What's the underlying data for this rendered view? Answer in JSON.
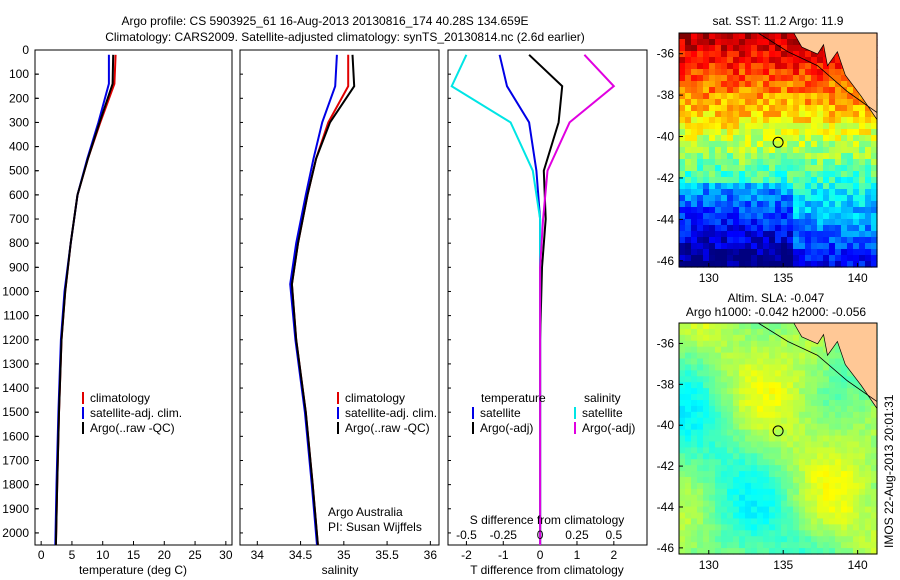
{
  "header": {
    "line1": "Argo profile: CS 5903925_61 16-Aug-2013 20130816_174 40.28S 134.659E",
    "line2": "Climatology: CARS2009. Satellite-adjusted climatology: synTS_20130814.nc (2.6d earlier)"
  },
  "footer_stamp": "IMOS 22-Aug-2013 20:01:31",
  "colors": {
    "climatology": "#e00000",
    "satellite": "#0000e6",
    "argo": "#000000",
    "satellite_s": "#00e5e5",
    "argo_s": "#e000e0",
    "land": "#ffc896"
  },
  "chart_data": [
    {
      "type": "line",
      "xlabel": "temperature (deg C)",
      "xticks": [
        "0",
        "5",
        "10",
        "15",
        "20",
        "25",
        "30"
      ],
      "xlim": [
        -1,
        31
      ],
      "ylim": [
        0,
        2050
      ],
      "yticks": [
        "0",
        "100",
        "200",
        "300",
        "400",
        "500",
        "600",
        "700",
        "800",
        "900",
        "1000",
        "1100",
        "1200",
        "1300",
        "1400",
        "1500",
        "1600",
        "1700",
        "1800",
        "1900",
        "2000"
      ],
      "legend": [
        "climatology",
        "satellite-adj. clim.",
        "Argo(..raw -QC)"
      ],
      "series": [
        {
          "name": "climatology",
          "color": "#e00000",
          "depth": [
            20,
            140,
            300,
            450,
            600,
            800,
            1000,
            1200,
            1500,
            1800,
            2050
          ],
          "values": [
            12.1,
            11.9,
            9.6,
            7.6,
            5.9,
            4.8,
            3.9,
            3.3,
            2.9,
            2.6,
            2.4
          ]
        },
        {
          "name": "satellite-adj. clim.",
          "color": "#0000e6",
          "depth": [
            20,
            140,
            300,
            450,
            600,
            800,
            1000,
            1200,
            1500,
            1800,
            2050
          ],
          "values": [
            11.0,
            11.0,
            9.3,
            7.5,
            5.9,
            4.8,
            3.8,
            3.2,
            2.8,
            2.5,
            2.3
          ]
        },
        {
          "name": "Argo(..raw -QC)",
          "color": "#000000",
          "depth": [
            20,
            140,
            300,
            450,
            600,
            800,
            1000,
            1200,
            1500,
            1800,
            2050
          ],
          "values": [
            11.7,
            11.6,
            9.5,
            7.6,
            5.9,
            4.8,
            3.9,
            3.3,
            2.9,
            2.6,
            2.4
          ]
        }
      ]
    },
    {
      "type": "line",
      "xlabel": "salinity",
      "xticks": [
        "34",
        "34.5",
        "35",
        "35.5",
        "36"
      ],
      "xlim": [
        33.8,
        36.1
      ],
      "ylim": [
        0,
        2050
      ],
      "legend": [
        "climatology",
        "satellite-adj. clim.",
        "Argo(..raw -QC)"
      ],
      "annotation": [
        "Argo Australia",
        "PI: Susan Wijffels"
      ],
      "series": [
        {
          "name": "climatology",
          "color": "#e00000",
          "depth": [
            20,
            150,
            300,
            450,
            600,
            800,
            970,
            1200,
            1500,
            1800,
            2050
          ],
          "values": [
            35.05,
            35.05,
            34.82,
            34.68,
            34.58,
            34.47,
            34.4,
            34.45,
            34.56,
            34.64,
            34.7
          ]
        },
        {
          "name": "satellite-adj. clim.",
          "color": "#0000e6",
          "depth": [
            20,
            150,
            300,
            450,
            600,
            800,
            970,
            1200,
            1500,
            1800,
            2050
          ],
          "values": [
            34.92,
            34.9,
            34.75,
            34.65,
            34.56,
            34.45,
            34.38,
            34.44,
            34.55,
            34.63,
            34.69
          ]
        },
        {
          "name": "Argo(..raw -QC)",
          "color": "#000000",
          "depth": [
            20,
            150,
            300,
            450,
            600,
            800,
            970,
            1200,
            1500,
            1800,
            2050
          ],
          "values": [
            35.1,
            35.12,
            34.84,
            34.68,
            34.58,
            34.47,
            34.4,
            34.45,
            34.56,
            34.64,
            34.7
          ]
        }
      ]
    },
    {
      "type": "line",
      "xlabel": "T difference from climatology",
      "xlabel_top": "S difference from climatology",
      "xticks": [
        "-2",
        "-1",
        "0",
        "1",
        "2"
      ],
      "xticks_top": [
        "-0.5",
        "-0.25",
        "0",
        "0.25",
        "0.5"
      ],
      "xlim": [
        -2.5,
        2.9
      ],
      "ylim": [
        0,
        2050
      ],
      "legend_titles": [
        "temperature",
        "salinity"
      ],
      "legend": [
        "satellite",
        "Argo(-adj)",
        "satellite",
        "Argo(-adj)"
      ],
      "series": [
        {
          "name": "satellite",
          "color": "#0000e6",
          "depth": [
            20,
            150,
            300,
            500,
            700,
            900,
            1200,
            1500,
            2050
          ],
          "values": [
            -1.1,
            -0.9,
            -0.3,
            -0.1,
            0.0,
            0.0,
            0.0,
            0.0,
            0.0
          ]
        },
        {
          "name": "Argo(-adj)",
          "color": "#000000",
          "depth": [
            20,
            150,
            300,
            500,
            700,
            900,
            1200,
            1500,
            2050
          ],
          "values": [
            -0.3,
            0.6,
            0.5,
            0.1,
            0.15,
            0.05,
            0.0,
            0.0,
            0.0
          ]
        },
        {
          "name": "satellite",
          "color": "#00e5e5",
          "depth": [
            20,
            150,
            300,
            500,
            700,
            900,
            1200,
            1500,
            2050
          ],
          "values": [
            -0.5,
            -0.6,
            -0.2,
            -0.05,
            0.0,
            0.0,
            0.0,
            0.0,
            0.0
          ]
        },
        {
          "name": "Argo(-adj)",
          "color": "#e000e0",
          "depth": [
            20,
            150,
            300,
            500,
            700,
            900,
            1200,
            1500,
            2050
          ],
          "values": [
            0.3,
            0.5,
            0.2,
            0.05,
            0.02,
            0.0,
            0.0,
            0.0,
            0.0
          ]
        }
      ]
    },
    {
      "type": "heatmap",
      "title": "sat. SST: 11.2 Argo: 11.9",
      "xticks": [
        "130",
        "135",
        "140"
      ],
      "yticks": [
        "-36",
        "-38",
        "-40",
        "-42",
        "-44",
        "-46"
      ],
      "marker": [
        134.659,
        -40.28
      ]
    },
    {
      "type": "heatmap",
      "title": [
        "Altim. SLA: -0.047",
        "Argo h1000: -0.042 h2000: -0.056"
      ],
      "xticks": [
        "130",
        "135",
        "140"
      ],
      "yticks": [
        "-36",
        "-38",
        "-40",
        "-42",
        "-44",
        "-46"
      ],
      "marker": [
        134.659,
        -40.28
      ]
    }
  ]
}
